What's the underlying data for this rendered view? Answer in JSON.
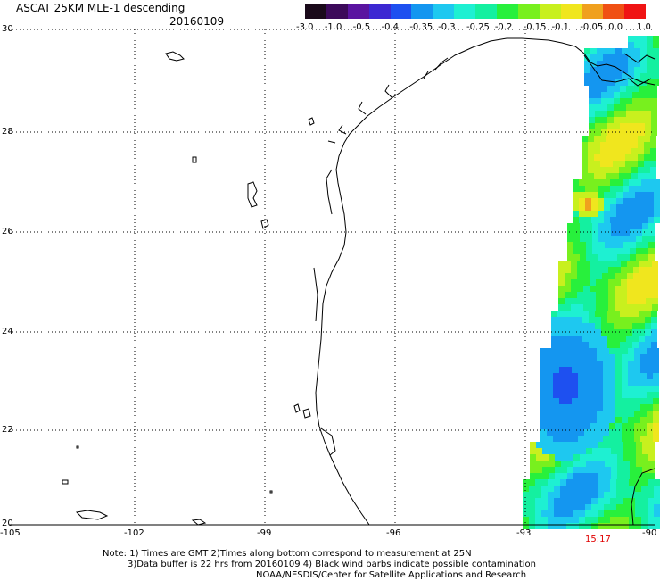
{
  "header": {
    "title": "ASCAT 25KM MLE-1 descending",
    "date": "20160109"
  },
  "colorbar": {
    "labels": [
      "-3.0",
      "-1.0",
      "-0.5",
      "-0.4",
      "-0.35",
      "-0.3",
      "-0.25",
      "-0.2",
      "-0.15",
      "-0.1",
      "-0.05",
      "0.0",
      "1.0"
    ],
    "colors": [
      "#1a0a1a",
      "#3c0a5a",
      "#5a14a0",
      "#3c28d2",
      "#1e50f0",
      "#1496f0",
      "#1ec8f0",
      "#1ef0d2",
      "#14f0a0",
      "#28f03c",
      "#78f01e",
      "#c8f01e",
      "#f0e61e",
      "#f0a01e",
      "#f05014",
      "#f01414"
    ]
  },
  "axes": {
    "lat_labels": [
      "30",
      "28",
      "26",
      "24",
      "22",
      "20"
    ],
    "lon_labels": [
      "-105",
      "-102",
      "-99",
      "-96",
      "-93",
      "-90"
    ]
  },
  "chart_data": {
    "type": "heatmap",
    "title": "ASCAT 25KM MLE-1 descending",
    "x_range": [
      -105,
      -90
    ],
    "y_range": [
      20,
      30
    ],
    "color_scale": [
      -3.0,
      -1.0,
      -0.5,
      -0.4,
      -0.35,
      -0.3,
      -0.25,
      -0.2,
      -0.15,
      -0.1,
      -0.05,
      0.0,
      1.0
    ],
    "grid": true
  },
  "time_label": "15:17",
  "notes": {
    "line1": "Note: 1) Times are GMT 2)Times along bottom correspond to measurement at 25N",
    "line2": "3)Data buffer is 22 hrs from 20160109 4) Black wind barbs indicate possible contamination",
    "line3": "NOAA/NESDIS/Center for Satellite Applications and Research"
  }
}
